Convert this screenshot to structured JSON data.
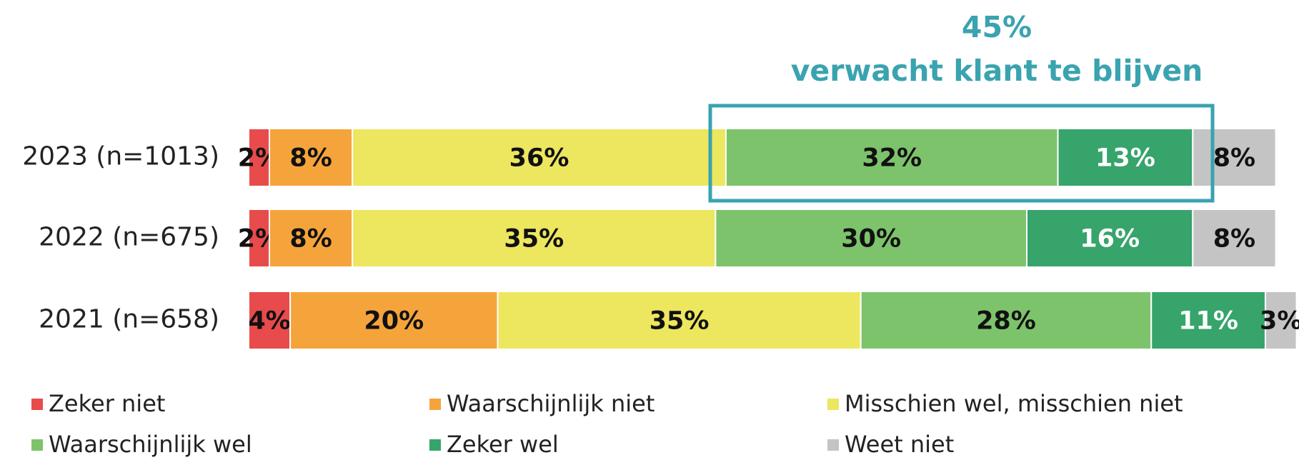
{
  "chart_data": {
    "type": "stacked_barh",
    "annotation": [
      "45%",
      "verwacht klant te blijven"
    ],
    "categories": [
      "2023 (n=1013)",
      "2022 (n=675)",
      "2021 (n=658)"
    ],
    "xlim": [
      0,
      100
    ],
    "legend": "bottom",
    "series": [
      {
        "name": "Zeker niet",
        "color": "#e84b4b",
        "label_color": "#111111",
        "values": [
          2,
          2,
          4
        ],
        "value_labels": [
          "2%",
          "2%",
          "4%"
        ]
      },
      {
        "name": "Waarschijnlijk niet",
        "color": "#f5a43b",
        "label_color": "#111111",
        "values": [
          8,
          8,
          20
        ],
        "value_labels": [
          "8%",
          "8%",
          "20%"
        ]
      },
      {
        "name": "Misschien wel, misschien niet",
        "color": "#ede65f",
        "label_color": "#111111",
        "values": [
          36,
          35,
          35
        ],
        "value_labels": [
          "36%",
          "35%",
          "35%"
        ]
      },
      {
        "name": "Waarschijnlijk wel",
        "color": "#7dc36b",
        "label_color": "#111111",
        "values": [
          32,
          30,
          28
        ],
        "value_labels": [
          "32%",
          "30%",
          "28%"
        ]
      },
      {
        "name": "Zeker wel",
        "color": "#36a46b",
        "label_color": "#ffffff",
        "values": [
          13,
          16,
          11
        ],
        "value_labels": [
          "13%",
          "16%",
          "11%"
        ]
      },
      {
        "name": "Weet niet",
        "color": "#c4c4c4",
        "label_color": "#111111",
        "values": [
          8,
          8,
          3
        ],
        "value_labels": [
          "8%",
          "8%",
          "3%"
        ]
      }
    ]
  }
}
